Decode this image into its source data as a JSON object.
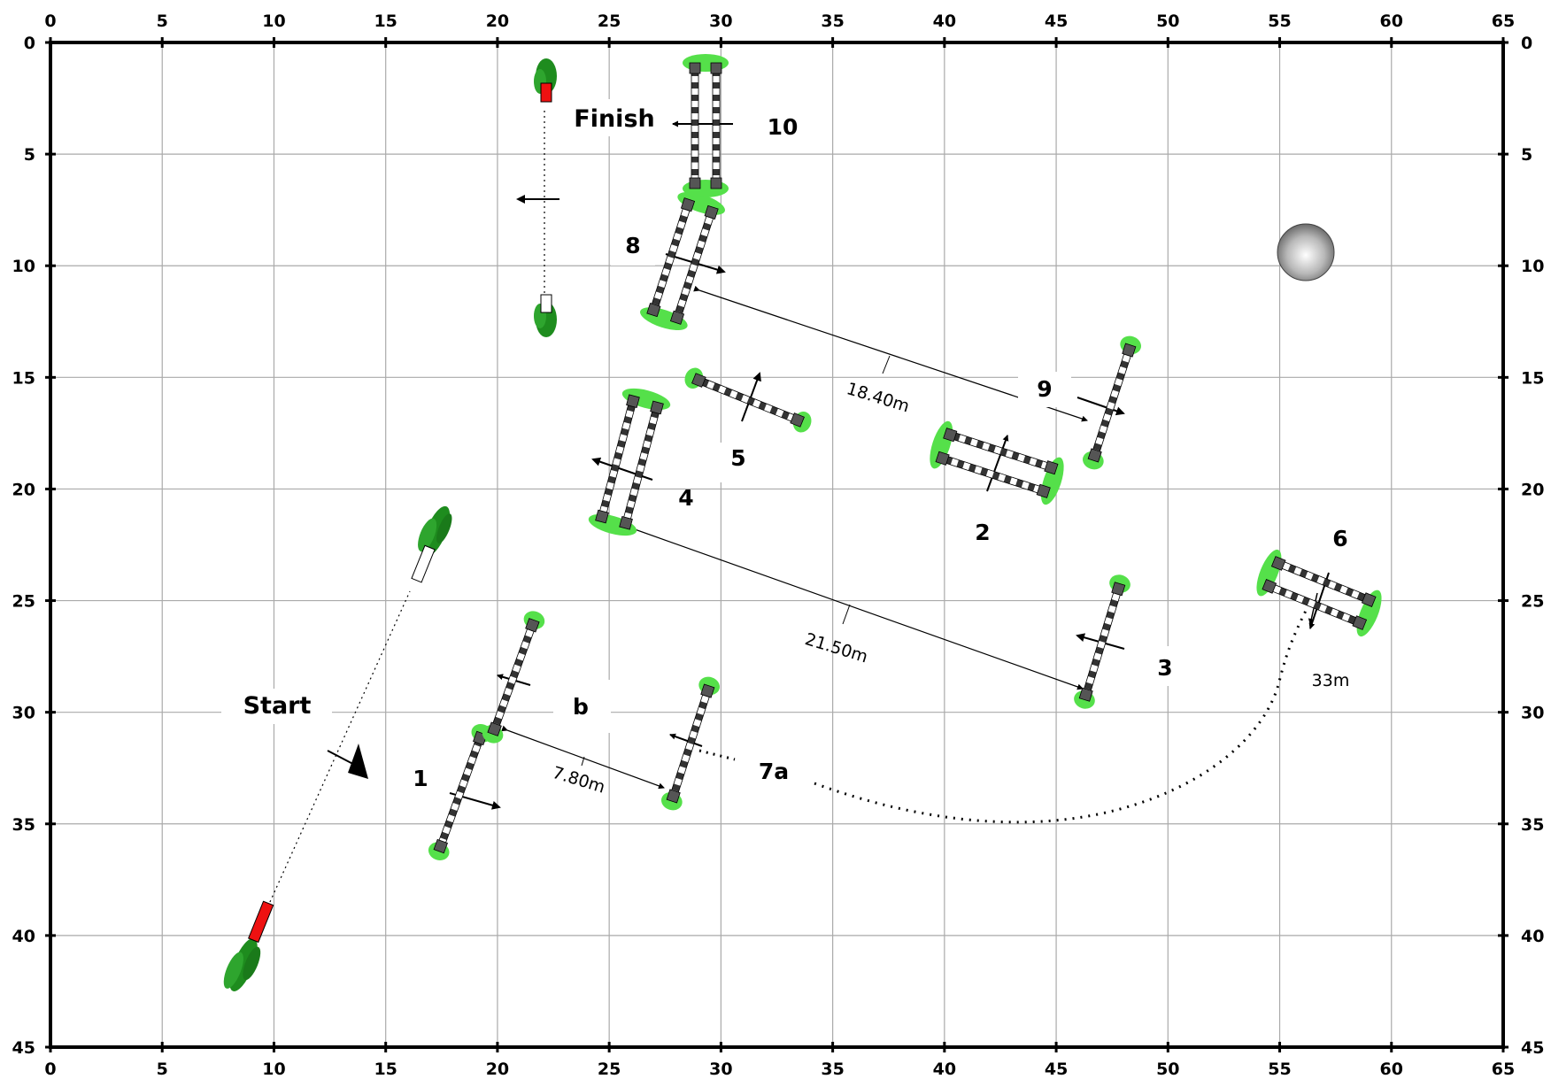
{
  "arena": {
    "x_ticks": [
      "0",
      "5",
      "10",
      "15",
      "20",
      "25",
      "30",
      "35",
      "40",
      "45",
      "50",
      "55",
      "60",
      "65"
    ],
    "y_ticks": [
      "0",
      "5",
      "10",
      "15",
      "20",
      "25",
      "30",
      "35",
      "40",
      "45"
    ]
  },
  "labels": {
    "start": "Start",
    "finish": "Finish",
    "n1": "1",
    "nb": "b",
    "n2": "2",
    "n3": "3",
    "n4": "4",
    "n5": "5",
    "n6": "6",
    "n7a": "7a",
    "n8": "8",
    "n9": "9",
    "n10": "10"
  },
  "distances": {
    "d1": "18.40m",
    "d2": "21.50m",
    "d3": "7.80m",
    "d4": "33m"
  },
  "colors": {
    "grid": "#aaaaaa",
    "frame": "#000000",
    "hedge_light": "#55e04a",
    "hedge_dark": "#1e8c1e",
    "flag_red": "#ee1111",
    "post": "#555555"
  },
  "icons": {
    "start_flag": "start-flag-icon",
    "finish_flag": "finish-flag-icon",
    "judge": "judge-ball-icon"
  }
}
